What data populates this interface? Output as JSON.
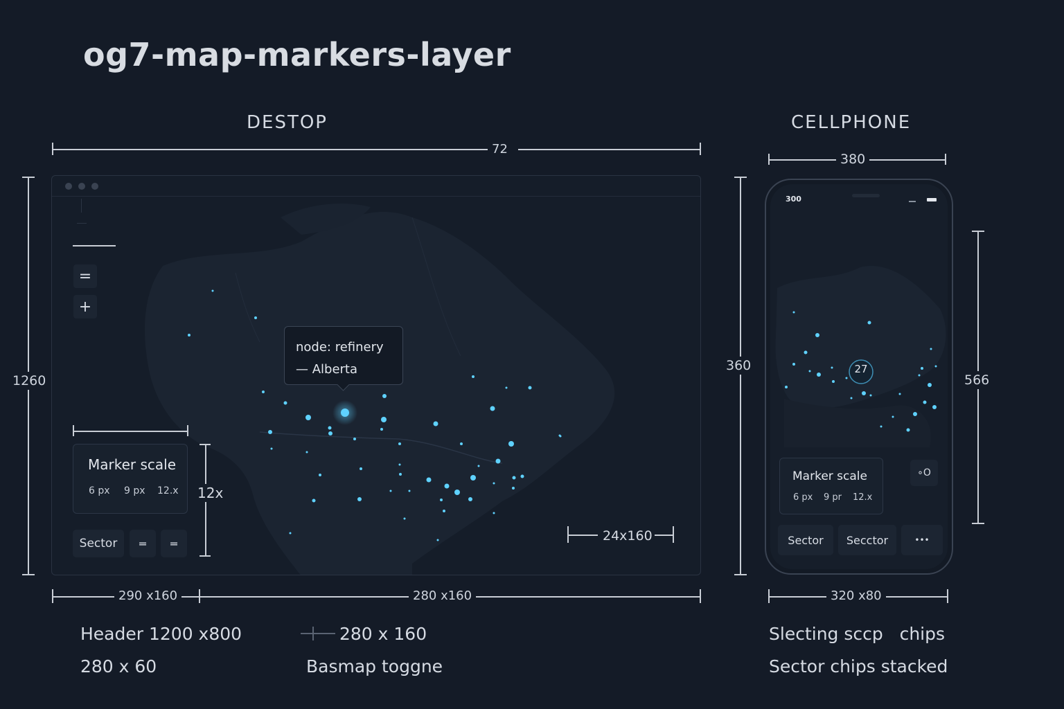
{
  "page_title": "og7-map-markers-layer",
  "desktop": {
    "label": "DESTOP",
    "dim_width": "72",
    "dim_height": "1260",
    "tooltip": {
      "line1": "node: refinery",
      "line2": "— Alberta"
    },
    "zoom_out_label": "=",
    "zoom_in_label": "+",
    "marker_scale": {
      "title": "Marker scale",
      "options": [
        "6 px",
        "9 px",
        "12.x"
      ]
    },
    "scale_height_label": "12x",
    "sector_chip": "Sector",
    "chip2": "═",
    "chip3": "═",
    "corner_dim": "24x160",
    "dim_bottom_left": "290 x160",
    "dim_bottom_right": "280 x160"
  },
  "cellphone": {
    "label": "CELLPHONE",
    "dim_width": "380",
    "dim_height_left": "360",
    "dim_height_right": "566",
    "status_time": "300",
    "cluster_count": "27",
    "marker_scale": {
      "title": "Marker scale",
      "options": [
        "6 px",
        "9 pr",
        "12.x"
      ]
    },
    "toggle_icon": "∘O",
    "chips": [
      "Sector",
      "Secctor"
    ],
    "more_label": "•••",
    "dim_bottom": "320 x80"
  },
  "captions": {
    "header": "Header 1200 x800",
    "size_280x60": "280 x 60",
    "size_280x160": "280 x 160",
    "basemap": "Basmap togg",
    "basemap_suffix": "ne",
    "selecting": "Slecting sccp   chips",
    "stacked": "Sector chips stacked"
  },
  "colors": {
    "background": "#141b27",
    "marker": "#5fd2ff",
    "marker_glow": "#2a8fbf",
    "land": "#1b2431"
  }
}
